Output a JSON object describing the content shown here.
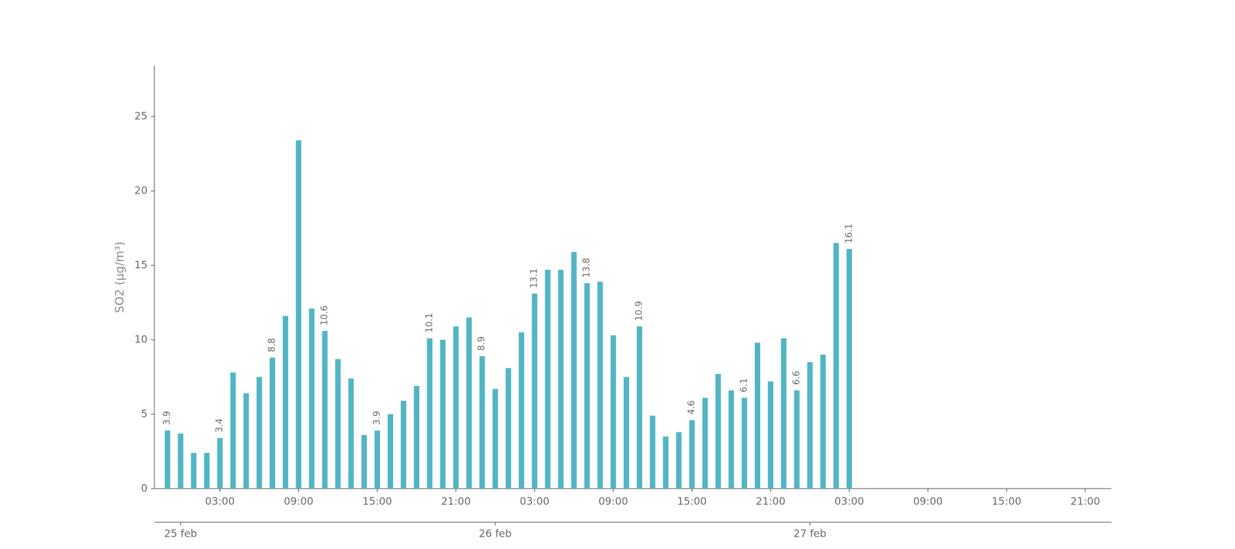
{
  "chart_data": {
    "type": "bar",
    "y_label": "SO2 (μg/m³)",
    "x": [
      -1,
      0,
      1,
      2,
      3,
      4,
      5,
      6,
      7,
      8,
      9,
      10,
      11,
      12,
      13,
      14,
      15,
      16,
      17,
      18,
      19,
      20,
      21,
      22,
      23,
      24,
      25,
      26,
      27,
      28,
      29,
      30,
      31,
      32,
      33,
      34,
      35,
      36,
      37,
      38,
      39,
      40,
      41,
      42,
      43,
      44,
      45,
      46,
      47,
      48,
      49,
      50,
      51
    ],
    "values": [
      3.9,
      3.7,
      2.4,
      2.4,
      3.4,
      7.8,
      6.4,
      7.5,
      8.8,
      11.6,
      23.4,
      12.1,
      10.6,
      8.7,
      7.4,
      3.6,
      3.9,
      5.0,
      5.9,
      6.9,
      10.1,
      10.0,
      10.9,
      11.5,
      8.9,
      6.7,
      8.1,
      10.5,
      13.1,
      14.7,
      14.7,
      15.9,
      13.8,
      13.9,
      10.3,
      7.5,
      10.9,
      4.9,
      3.5,
      3.8,
      4.6,
      6.1,
      7.7,
      6.6,
      6.1,
      9.8,
      7.2,
      10.1,
      6.6,
      8.5,
      9.0,
      16.5,
      16.1
    ],
    "value_labels": [
      "3.9",
      null,
      null,
      null,
      "3.4",
      null,
      null,
      null,
      "8.8",
      null,
      null,
      null,
      "10.6",
      null,
      null,
      null,
      "3.9",
      null,
      null,
      null,
      "10.1",
      null,
      null,
      null,
      "8.9",
      null,
      null,
      null,
      "13.1",
      null,
      null,
      null,
      "13.8",
      null,
      null,
      null,
      "10.9",
      null,
      null,
      null,
      "4.6",
      null,
      null,
      null,
      "6.1",
      null,
      null,
      null,
      "6.6",
      null,
      null,
      null,
      "16.1"
    ],
    "color": "#52b5c4",
    "xlim": [
      -2,
      71
    ],
    "xticks": [
      {
        "value": 3,
        "label": "03:00"
      },
      {
        "value": 9,
        "label": "09:00"
      },
      {
        "value": 15,
        "label": "15:00"
      },
      {
        "value": 21,
        "label": "21:00"
      },
      {
        "value": 27,
        "label": "03:00"
      },
      {
        "value": 33,
        "label": "09:00"
      },
      {
        "value": 39,
        "label": "15:00"
      },
      {
        "value": 45,
        "label": "21:00"
      },
      {
        "value": 51,
        "label": "03:00"
      },
      {
        "value": 57,
        "label": "09:00"
      },
      {
        "value": 63,
        "label": "15:00"
      },
      {
        "value": 69,
        "label": "21:00"
      }
    ],
    "day_ticks": [
      {
        "value": 0,
        "label": "25 feb"
      },
      {
        "value": 24,
        "label": "26 feb"
      },
      {
        "value": 48,
        "label": "27 feb"
      }
    ],
    "ylim": [
      0,
      28.4
    ],
    "yticks": [
      0,
      5,
      10,
      15,
      20,
      25
    ]
  }
}
